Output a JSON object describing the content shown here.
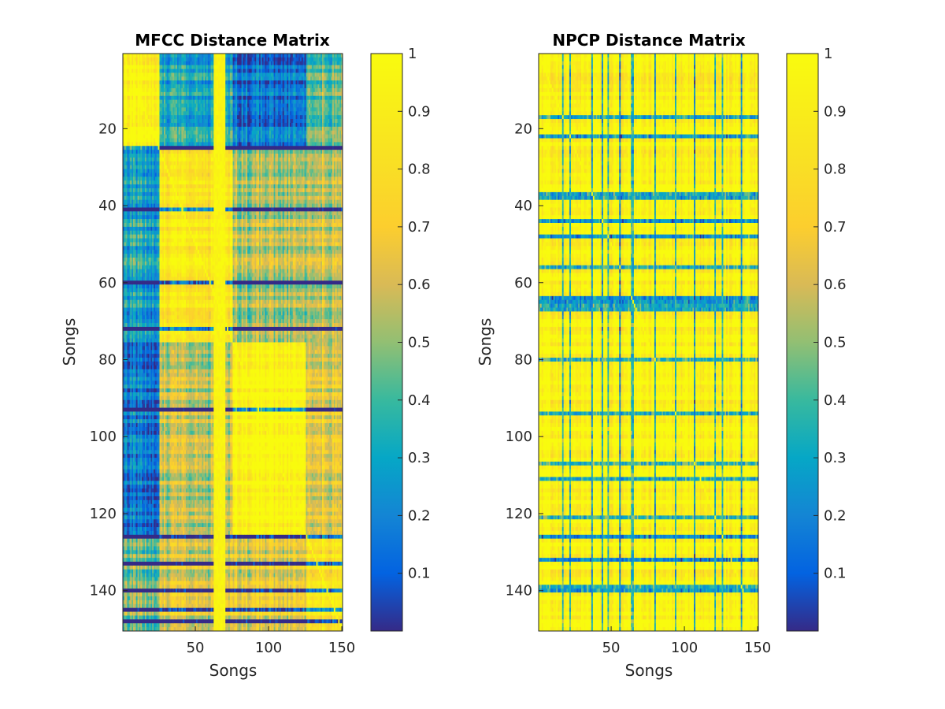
{
  "chart_data": [
    {
      "type": "heatmap",
      "title": "MFCC Distance Matrix",
      "xlabel": "Songs",
      "ylabel": "Songs",
      "size": 150,
      "xlim": [
        1,
        150
      ],
      "ylim": [
        1,
        150
      ],
      "xticks": [
        50,
        100,
        150
      ],
      "yticks": [
        20,
        40,
        60,
        80,
        100,
        120,
        140
      ],
      "colorbar": {
        "range": [
          0.0,
          1.0
        ],
        "ticks": [
          "0.1",
          "0.2",
          "0.3",
          "0.4",
          "0.5",
          "0.6",
          "0.7",
          "0.8",
          "0.9",
          "1"
        ]
      },
      "colormap": "parula",
      "grid": false,
      "structure": {
        "clusters": [
          [
            1,
            25
          ],
          [
            26,
            75
          ],
          [
            76,
            125
          ],
          [
            126,
            150
          ]
        ],
        "cluster_similarity": [
          [
            0.95,
            0.3,
            0.15,
            0.45
          ],
          [
            0.3,
            0.85,
            0.55,
            0.6
          ],
          [
            0.15,
            0.55,
            0.97,
            0.65
          ],
          [
            0.45,
            0.6,
            0.65,
            0.85
          ]
        ],
        "dark_rows": [
          25,
          41,
          60,
          72,
          93,
          126,
          133,
          140,
          145,
          148
        ],
        "bright_columns": [
          63,
          64,
          65,
          66,
          67,
          68,
          69,
          70
        ]
      }
    },
    {
      "type": "heatmap",
      "title": "NPCP Distance Matrix",
      "xlabel": "Songs",
      "ylabel": "Songs",
      "size": 150,
      "xlim": [
        1,
        150
      ],
      "ylim": [
        1,
        150
      ],
      "xticks": [
        50,
        100,
        150
      ],
      "yticks": [
        20,
        40,
        60,
        80,
        100,
        120,
        140
      ],
      "colorbar": {
        "range": [
          0.0,
          1.0
        ],
        "ticks": [
          "0.1",
          "0.2",
          "0.3",
          "0.4",
          "0.5",
          "0.6",
          "0.7",
          "0.8",
          "0.9",
          "1"
        ]
      },
      "colormap": "parula",
      "grid": false,
      "structure": {
        "base_level": 0.95,
        "dark_rows": [
          17,
          22,
          37,
          38,
          44,
          48,
          56,
          64,
          65,
          66,
          67,
          80,
          94,
          107,
          111,
          121,
          126,
          132,
          139,
          140
        ],
        "dark_columns": [
          17,
          22,
          37,
          44,
          48,
          56,
          64,
          65,
          80,
          94,
          107,
          121,
          126,
          139
        ]
      }
    }
  ]
}
